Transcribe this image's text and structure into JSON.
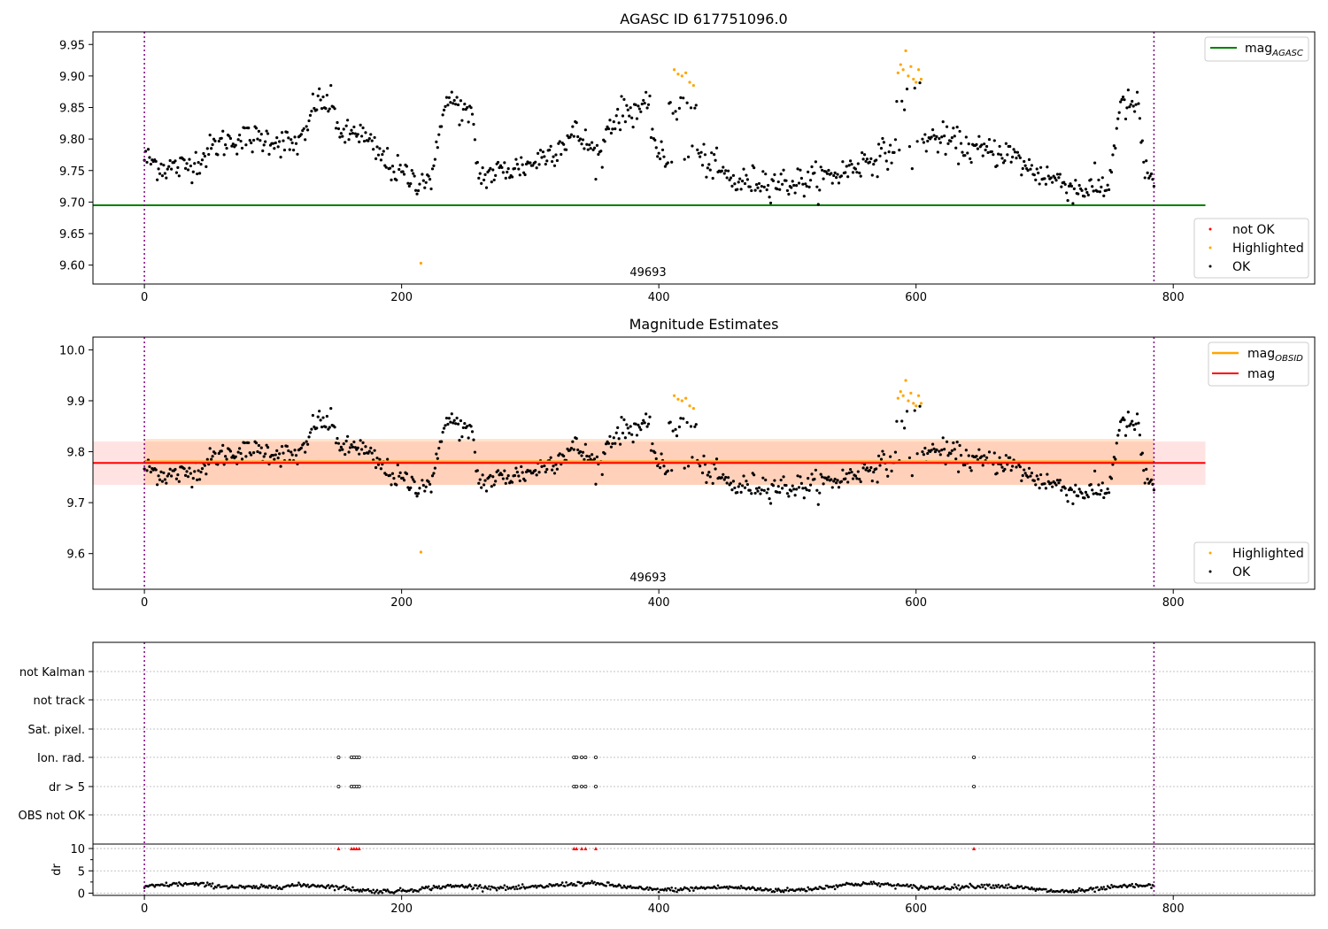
{
  "chart_data": [
    {
      "type": "scatter",
      "title": "AGASC ID 617751096.0",
      "xlim": [
        -40,
        910
      ],
      "ylim": [
        9.57,
        9.97
      ],
      "xticks": [
        "0",
        "200",
        "400",
        "600",
        "800"
      ],
      "yticks": [
        "9.60",
        "9.65",
        "9.70",
        "9.75",
        "9.80",
        "9.85",
        "9.90",
        "9.95"
      ],
      "obsid_label": "49693",
      "obsid_boundaries": [
        0,
        785
      ],
      "lines": [
        {
          "name": "mag_AGASC",
          "legend_main": "mag",
          "legend_sub": "AGASC",
          "y": 9.695,
          "x": [
            -40,
            825
          ],
          "color": "#008000"
        }
      ],
      "legend_points": [
        {
          "name": "not OK",
          "color": "#ff0000"
        },
        {
          "name": "Highlighted",
          "color": "#ffa500"
        },
        {
          "name": "OK",
          "color": "#000000"
        }
      ],
      "trend": [
        [
          0,
          9.77
        ],
        [
          15,
          9.755
        ],
        [
          30,
          9.755
        ],
        [
          45,
          9.77
        ],
        [
          55,
          9.79
        ],
        [
          70,
          9.8
        ],
        [
          85,
          9.8
        ],
        [
          100,
          9.8
        ],
        [
          115,
          9.79
        ],
        [
          125,
          9.8
        ],
        [
          132,
          9.86
        ],
        [
          145,
          9.855
        ],
        [
          155,
          9.8
        ],
        [
          165,
          9.815
        ],
        [
          180,
          9.78
        ],
        [
          195,
          9.75
        ],
        [
          210,
          9.735
        ],
        [
          225,
          9.74
        ],
        [
          232,
          9.855
        ],
        [
          240,
          9.86
        ],
        [
          255,
          9.83
        ],
        [
          260,
          9.74
        ],
        [
          280,
          9.75
        ],
        [
          300,
          9.76
        ],
        [
          320,
          9.785
        ],
        [
          335,
          9.81
        ],
        [
          345,
          9.79
        ],
        [
          355,
          9.77
        ],
        [
          360,
          9.82
        ],
        [
          370,
          9.84
        ],
        [
          385,
          9.85
        ],
        [
          392,
          9.845
        ],
        [
          400,
          9.77
        ],
        [
          415,
          9.76
        ],
        [
          425,
          9.78
        ],
        [
          440,
          9.76
        ],
        [
          460,
          9.73
        ],
        [
          480,
          9.735
        ],
        [
          500,
          9.73
        ],
        [
          520,
          9.735
        ],
        [
          540,
          9.745
        ],
        [
          560,
          9.765
        ],
        [
          582,
          9.78
        ],
        [
          605,
          9.8
        ],
        [
          620,
          9.8
        ],
        [
          635,
          9.79
        ],
        [
          650,
          9.78
        ],
        [
          670,
          9.78
        ],
        [
          690,
          9.75
        ],
        [
          710,
          9.735
        ],
        [
          725,
          9.72
        ],
        [
          750,
          9.725
        ],
        [
          758,
          9.85
        ],
        [
          772,
          9.855
        ],
        [
          778,
          9.75
        ],
        [
          785,
          9.735
        ]
      ],
      "highlighted": [
        [
          412,
          9.91
        ],
        [
          415,
          9.903
        ],
        [
          418,
          9.9
        ],
        [
          421,
          9.905
        ],
        [
          424,
          9.89
        ],
        [
          427,
          9.885
        ],
        [
          586,
          9.905
        ],
        [
          588,
          9.918
        ],
        [
          590,
          9.91
        ],
        [
          592,
          9.94
        ],
        [
          594,
          9.9
        ],
        [
          596,
          9.915
        ],
        [
          598,
          9.895
        ],
        [
          600,
          9.89
        ],
        [
          602,
          9.91
        ],
        [
          604,
          9.895
        ],
        [
          215,
          9.603
        ]
      ],
      "not_ok": []
    },
    {
      "type": "scatter",
      "title": "Magnitude Estimates",
      "xlim": [
        -40,
        910
      ],
      "ylim": [
        9.53,
        10.025
      ],
      "xticks": [
        "0",
        "200",
        "400",
        "600",
        "800"
      ],
      "yticks": [
        "9.6",
        "9.7",
        "9.8",
        "9.9",
        "10.0"
      ],
      "obsid_label": "49693",
      "obsid_boundaries": [
        0,
        785
      ],
      "lines": [
        {
          "name": "mag_OBSID",
          "legend_main": "mag",
          "legend_sub": "OBSID",
          "y": 9.78,
          "x": [
            0,
            785
          ],
          "color": "#ffa500"
        },
        {
          "name": "mag",
          "legend_main": "mag",
          "legend_sub": "",
          "y": 9.778,
          "x": [
            -40,
            825
          ],
          "color": "#ff0000"
        }
      ],
      "bands": [
        {
          "name": "mag_band",
          "y": [
            9.735,
            9.82
          ],
          "x": [
            -40,
            825
          ],
          "color": "#ff9999"
        },
        {
          "name": "mag_OBSID_band",
          "y": [
            9.735,
            9.825
          ],
          "x": [
            0,
            785
          ],
          "color": "#ffb070"
        }
      ],
      "legend_points": [
        {
          "name": "Highlighted",
          "color": "#ffa500"
        },
        {
          "name": "OK",
          "color": "#000000"
        }
      ]
    },
    {
      "type": "scatter",
      "title": "",
      "xlim": [
        -40,
        910
      ],
      "xticks": [
        "0",
        "200",
        "400",
        "600",
        "800"
      ],
      "flag_rows": [
        "not Kalman",
        "not track",
        "Sat. pixel.",
        "Ion. rad.",
        "dr > 5",
        "OBS not OK"
      ],
      "flag_points": {
        "Ion. rad.": [
          151,
          161,
          163,
          165,
          167,
          334,
          336,
          340,
          343,
          351,
          645
        ],
        "dr > 5": [
          151,
          161,
          163,
          165,
          167,
          334,
          336,
          340,
          343,
          351,
          645
        ]
      },
      "dr_ylabel": "dr",
      "dr_yticks": [
        "0",
        "5",
        "10"
      ],
      "dr_ylim": [
        -0.5,
        11
      ],
      "dr_outliers_x": [
        151,
        161,
        163,
        165,
        167,
        334,
        336,
        340,
        343,
        351,
        645
      ]
    }
  ]
}
